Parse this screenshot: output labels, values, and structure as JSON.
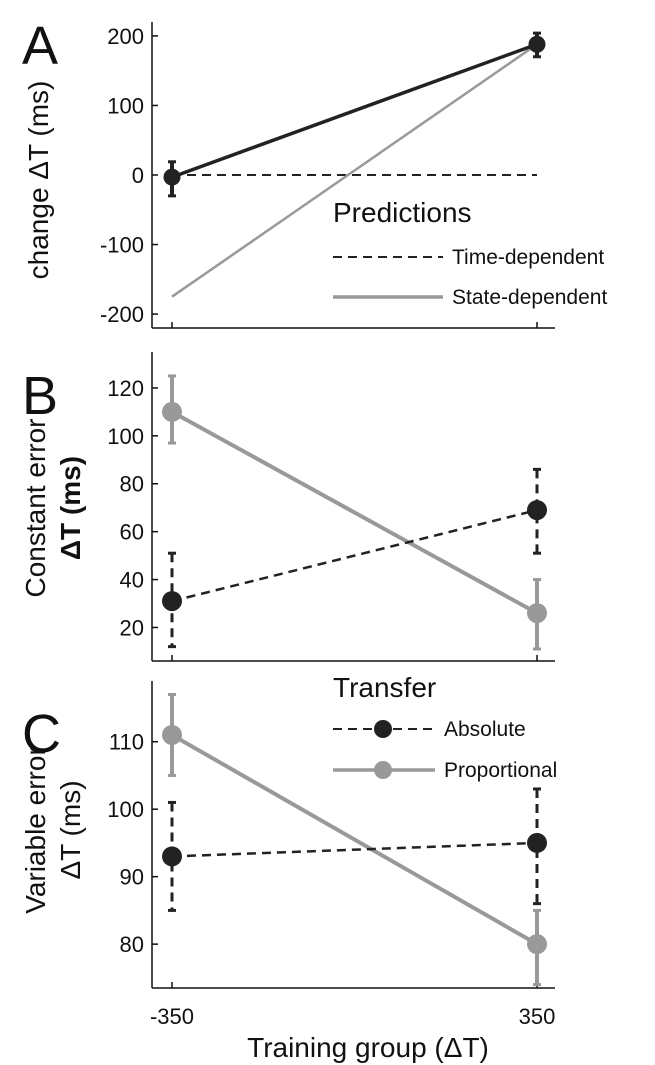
{
  "chart_data": [
    {
      "panel": "A",
      "type": "line",
      "ylabel": "change ΔT (ms)",
      "ylim": [
        -220,
        220
      ],
      "yticks": [
        -200,
        -100,
        0,
        100,
        200
      ],
      "categories": [
        "-350",
        "350"
      ],
      "observed": {
        "values": [
          -3,
          188
        ],
        "err_low": [
          27,
          18
        ],
        "err_high": [
          22,
          16
        ]
      },
      "legend_title": "Predictions",
      "series": [
        {
          "name": "Time-dependent",
          "values": [
            0,
            0
          ],
          "style": "dashed",
          "color": "#222222"
        },
        {
          "name": "State-dependent",
          "values": [
            -175,
            188
          ],
          "style": "solid",
          "color": "#999999"
        }
      ]
    },
    {
      "panel": "B",
      "type": "line",
      "ylabel_line1": "Constant error",
      "ylabel_line2": "ΔT (ms)",
      "ylim": [
        6,
        135
      ],
      "yticks": [
        20,
        40,
        60,
        80,
        100,
        120
      ],
      "categories": [
        "-350",
        "350"
      ],
      "series": [
        {
          "name": "Absolute",
          "values": [
            31,
            69
          ],
          "err_low": [
            19,
            18
          ],
          "err_high": [
            20,
            17
          ],
          "style": "dashed",
          "color": "#222222"
        },
        {
          "name": "Proportional",
          "values": [
            110,
            26
          ],
          "err_low": [
            13,
            15
          ],
          "err_high": [
            15,
            14
          ],
          "style": "solid",
          "color": "#999999"
        }
      ]
    },
    {
      "panel": "C",
      "type": "line",
      "ylabel_line1": "Variable error",
      "ylabel_line2": "ΔT (ms)",
      "ylim": [
        73.5,
        119
      ],
      "yticks": [
        80,
        90,
        100,
        110
      ],
      "categories": [
        "-350",
        "350"
      ],
      "xlabel": "Training group (ΔT)",
      "legend_title": "Transfer",
      "series": [
        {
          "name": "Absolute",
          "values": [
            93,
            95
          ],
          "err_low": [
            8,
            9
          ],
          "err_high": [
            8,
            8
          ],
          "style": "dashed",
          "color": "#222222"
        },
        {
          "name": "Proportional",
          "values": [
            111,
            80
          ],
          "err_low": [
            6,
            6
          ],
          "err_high": [
            6,
            5
          ],
          "style": "solid",
          "color": "#999999"
        }
      ]
    }
  ]
}
